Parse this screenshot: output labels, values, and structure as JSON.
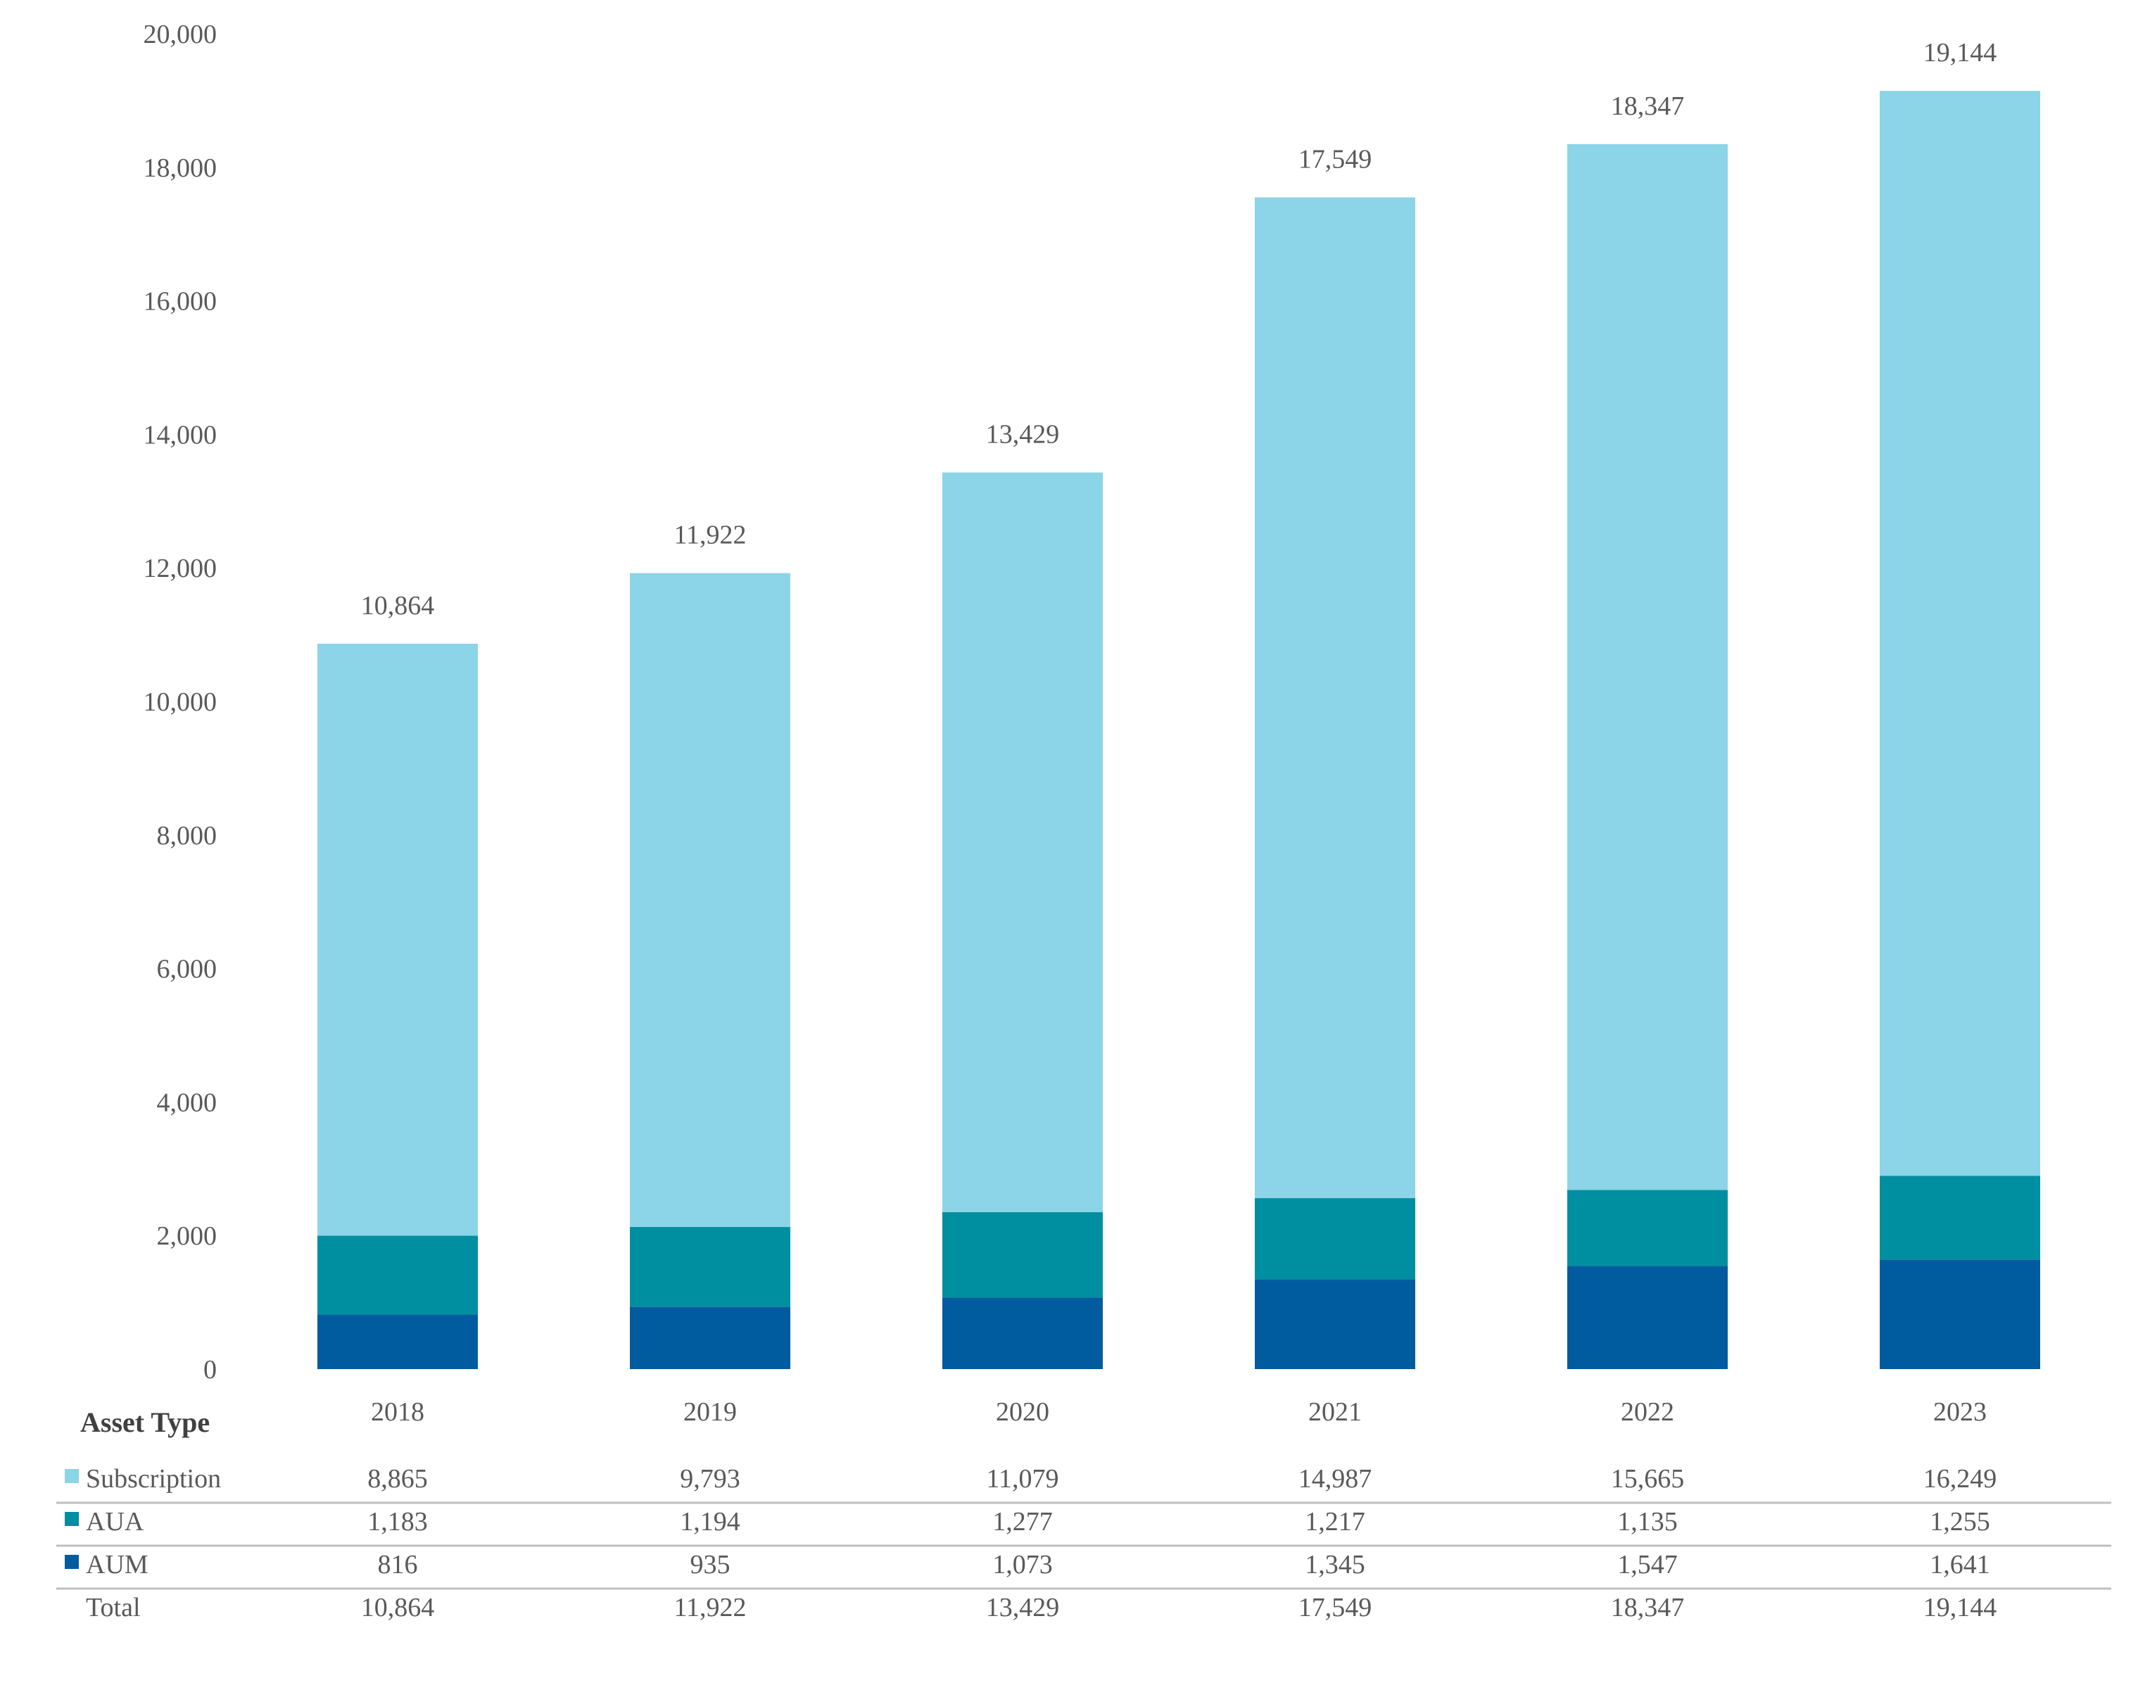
{
  "chart_data": {
    "type": "bar",
    "stacked": true,
    "categories": [
      "2018",
      "2019",
      "2020",
      "2021",
      "2022",
      "2023"
    ],
    "series": [
      {
        "name": "AUM",
        "color": "#005B9F",
        "values": [
          816,
          935,
          1073,
          1345,
          1547,
          1641
        ],
        "value_labels": [
          "816",
          "935",
          "1,073",
          "1,345",
          "1,547",
          "1,641"
        ]
      },
      {
        "name": "AUA",
        "color": "#008FA0",
        "values": [
          1183,
          1194,
          1277,
          1217,
          1135,
          1255
        ],
        "value_labels": [
          "1,183",
          "1,194",
          "1,277",
          "1,217",
          "1,135",
          "1,255"
        ]
      },
      {
        "name": "Subscription",
        "color": "#8CD4E8",
        "values": [
          8865,
          9793,
          11079,
          14987,
          15665,
          16249
        ],
        "value_labels": [
          "8,865",
          "9,793",
          "11,079",
          "14,987",
          "15,665",
          "16,249"
        ]
      }
    ],
    "totals": [
      10864,
      11922,
      13429,
      17549,
      18347,
      19144
    ],
    "total_labels": [
      "10,864",
      "11,922",
      "13,429",
      "17,549",
      "18,347",
      "19,144"
    ],
    "ylim": [
      0,
      20000
    ],
    "yticks": [
      0,
      2000,
      4000,
      6000,
      8000,
      10000,
      12000,
      14000,
      16000,
      18000,
      20000
    ],
    "ytick_labels": [
      "0",
      "2,000",
      "4,000",
      "6,000",
      "8,000",
      "10,000",
      "12,000",
      "14,000",
      "16,000",
      "18,000",
      "20,000"
    ],
    "grid": false,
    "title": "",
    "xlabel": "",
    "ylabel": "",
    "data_table": {
      "header": "Asset Type",
      "row_order": [
        "Subscription",
        "AUA",
        "AUM"
      ],
      "total_row_label": "Total"
    }
  }
}
